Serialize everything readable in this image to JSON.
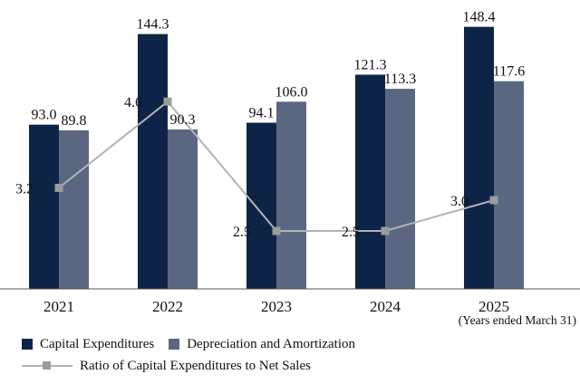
{
  "chart_data": {
    "type": "bar",
    "categories": [
      "2021",
      "2022",
      "2023",
      "2024",
      "2025"
    ],
    "series": [
      {
        "name": "Capital Expenditures",
        "values": [
          93.0,
          144.3,
          94.1,
          121.3,
          148.4
        ],
        "color": "#0d2447"
      },
      {
        "name": "Depreciation and Amortization",
        "values": [
          89.8,
          90.3,
          106.0,
          113.3,
          117.6
        ],
        "color": "#5b6680"
      }
    ],
    "line_series": {
      "name": "Ratio of Capital Expenditures to Net Sales",
      "values": [
        3.2,
        4.6,
        2.5,
        2.5,
        3.0
      ],
      "labels": [
        "3.2",
        "4.6",
        "2.5",
        "2.5",
        "3.0"
      ],
      "color": "#b3b3b3",
      "marker_color": "#9b9b9b"
    },
    "bar_labels": [
      [
        "93.0",
        "144.3",
        "94.1",
        "121.3",
        "148.4"
      ],
      [
        "89.8",
        "90.3",
        "106.0",
        "113.3",
        "117.6"
      ]
    ],
    "x_note": "(Years ended March 31)",
    "ylim": [
      0,
      160
    ],
    "ratio_ylim": [
      0,
      6
    ],
    "grid": false,
    "legend_position": "bottom-left"
  }
}
